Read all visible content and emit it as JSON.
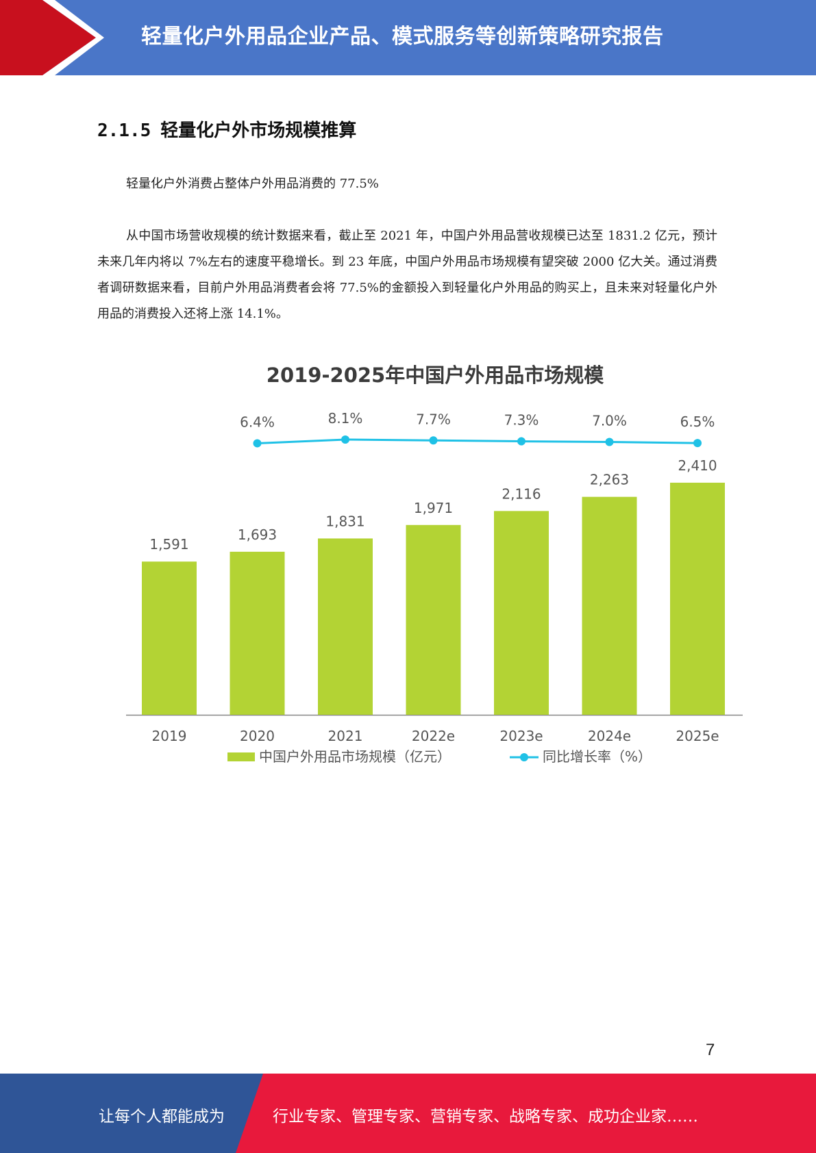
{
  "header": {
    "title": "轻量化户外用品企业产品、模式服务等创新策略研究报告",
    "colors": {
      "bar": "#4a76c8",
      "arrow": "#c8101e",
      "chevron_white": "#ffffff"
    }
  },
  "section": {
    "number": "2.1.5",
    "title": "轻量化户外市场规模推算"
  },
  "paragraphs": [
    "轻量化户外消费占整体户外用品消费的 77.5%",
    "从中国市场营收规模的统计数据来看，截止至 2021 年，中国户外用品营收规模已达至 1831.2 亿元，预计未来几年内将以 7%左右的速度平稳增长。到 23 年底，中国户外用品市场规模有望突破 2000 亿大关。通过消费者调研数据来看，目前户外用品消费者会将 77.5%的金额投入到轻量化户外用品的购买上，且未来对轻量化户外用品的消费投入还将上涨 14.1%。"
  ],
  "chart_data": {
    "type": "bar",
    "title": "2019-2025年中国户外用品市场规模",
    "categories": [
      "2019",
      "2020",
      "2021",
      "2022e",
      "2023e",
      "2024e",
      "2025e"
    ],
    "series": [
      {
        "name": "中国户外用品市场规模（亿元）",
        "type": "bar",
        "values": [
          1591,
          1693,
          1831,
          1971,
          2116,
          2263,
          2410
        ],
        "labels": [
          "1,591",
          "1,693",
          "1,831",
          "1,971",
          "2,116",
          "2,263",
          "2,410"
        ],
        "color": "#b3d334"
      },
      {
        "name": "同比增长率（%）",
        "type": "line",
        "values": [
          null,
          6.4,
          8.1,
          7.7,
          7.3,
          7.0,
          6.5
        ],
        "labels": [
          "",
          "6.4%",
          "8.1%",
          "7.7%",
          "7.3%",
          "7.0%",
          "6.5%"
        ],
        "color": "#1fc1e6"
      }
    ],
    "grid": false,
    "legend_position": "bottom",
    "axis_color": "#888888"
  },
  "page_number": "7",
  "footer": {
    "left_text": "让每个人都能成为",
    "right_text": "行业专家、管理专家、营销专家、战略专家、成功企业家……",
    "colors": {
      "left": "#2f5597",
      "right": "#e8193c"
    }
  }
}
